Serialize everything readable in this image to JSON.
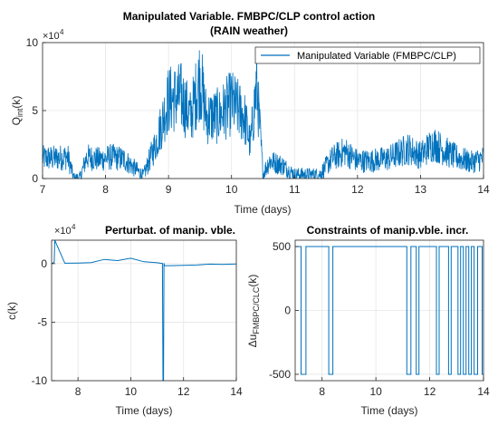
{
  "colors": {
    "series": "#0072BD",
    "axis": "#262626",
    "grid": "#e6e6e6",
    "bg": "#ffffff"
  },
  "chart_data": [
    {
      "id": "top",
      "type": "line",
      "title": [
        "Manipulated Variable. FMBPC/CLP control action",
        "(RAIN weather)"
      ],
      "xlabel": "Time (days)",
      "ylabel": "Q",
      "ylabel_sub": "int",
      "ylabel_suffix": "(k)",
      "exponent": "4",
      "xlim": [
        7,
        14
      ],
      "ylim": [
        0,
        10
      ],
      "xticks": [
        "7",
        "8",
        "9",
        "10",
        "11",
        "12",
        "13",
        "14"
      ],
      "yticks": [
        "0",
        "5",
        "10"
      ],
      "ytick_values": [
        0,
        5,
        10
      ],
      "legend": "Manipulated Variable (FMBPC/CLP)",
      "legend_position": "top-right",
      "grid": true,
      "series": [
        {
          "name": "Manipulated Variable (FMBPC/CLP)",
          "x": [
            7.0,
            7.2,
            7.4,
            7.5,
            7.6,
            7.7,
            7.9,
            8.1,
            8.3,
            8.6,
            8.8,
            9.0,
            9.2,
            9.35,
            9.5,
            9.6,
            9.8,
            10.0,
            10.2,
            10.3,
            10.4,
            10.5,
            10.6,
            10.8,
            11.0,
            11.2,
            11.4,
            11.6,
            11.8,
            12.0,
            12.2,
            12.5,
            12.8,
            13.0,
            13.2,
            13.5,
            13.8,
            14.0
          ],
          "values": [
            1.5,
            1.5,
            1.6,
            0.0,
            0.1,
            1.6,
            1.4,
            1.6,
            1.4,
            0.2,
            2.6,
            5.8,
            6.0,
            4.5,
            7.5,
            4.5,
            4.6,
            5.6,
            4.6,
            2.5,
            7.0,
            0.3,
            1.3,
            1.0,
            0.3,
            0.3,
            0.3,
            1.5,
            2.0,
            1.3,
            1.3,
            1.5,
            2.2,
            1.7,
            2.6,
            1.7,
            1.2,
            1.5
          ]
        }
      ]
    },
    {
      "id": "bottom-left",
      "type": "line",
      "title": "Perturbat. of manip. vble.",
      "xlabel": "Time (days)",
      "ylabel": "c(k)",
      "exponent": "4",
      "xlim": [
        7,
        14
      ],
      "ylim": [
        -10,
        2
      ],
      "xticks": [
        "8",
        "10",
        "12",
        "14"
      ],
      "xtick_values": [
        8,
        10,
        12,
        14
      ],
      "yticks": [
        "-10",
        "-5",
        "0"
      ],
      "ytick_values": [
        -10,
        -5,
        0
      ],
      "grid": true,
      "series": [
        {
          "x": [
            7.0,
            7.1,
            7.12,
            7.5,
            8.0,
            8.5,
            9.0,
            9.5,
            10.0,
            10.5,
            11.0,
            11.2,
            11.22,
            11.24,
            11.26,
            11.28,
            11.5,
            12.0,
            12.5,
            13.0,
            13.5,
            14.0
          ],
          "values": [
            0.0,
            0.1,
            2.0,
            0.0,
            0.0,
            0.1,
            0.4,
            0.3,
            0.4,
            0.2,
            0.0,
            0.0,
            -10.0,
            -10.0,
            0.0,
            -0.1,
            -0.2,
            -0.2,
            -0.1,
            -0.1,
            0.0,
            0.0
          ]
        }
      ]
    },
    {
      "id": "bottom-right",
      "type": "line",
      "title": "Constraints of manip.vble. incr.",
      "xlabel": "Time (days)",
      "ylabel": "Δu",
      "ylabel_sub": "FMBPC/CLC",
      "ylabel_suffix": "(k)",
      "xlim": [
        7,
        14
      ],
      "ylim": [
        -550,
        550
      ],
      "xticks": [
        "8",
        "10",
        "12",
        "14"
      ],
      "xtick_values": [
        8,
        10,
        12,
        14
      ],
      "yticks": [
        "-500",
        "0",
        "500"
      ],
      "ytick_values": [
        -500,
        0,
        500
      ],
      "grid": true,
      "series": [
        {
          "switch_times": [
            7.0,
            7.22,
            7.4,
            8.25,
            8.4,
            8.45,
            11.15,
            11.3,
            11.5,
            11.6,
            11.7,
            12.25,
            12.35,
            12.7,
            12.8,
            13.05,
            13.15,
            13.25,
            13.35,
            13.45,
            13.55,
            13.65,
            13.78,
            13.95,
            14.0
          ],
          "levels": [
            500,
            -500,
            500,
            -500,
            500,
            500,
            -500,
            500,
            -500,
            500,
            500,
            -500,
            500,
            -500,
            500,
            -500,
            500,
            -500,
            500,
            -500,
            500,
            -500,
            500,
            -500
          ]
        }
      ]
    }
  ]
}
